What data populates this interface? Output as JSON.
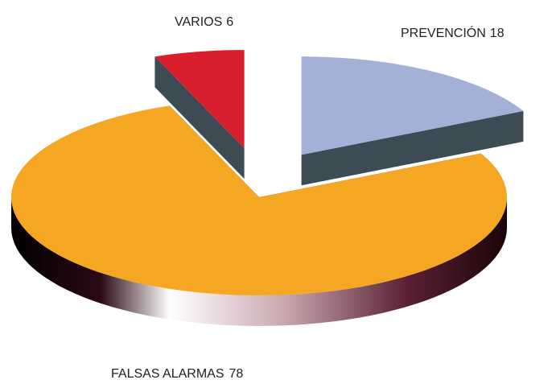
{
  "chart_data": {
    "type": "pie",
    "categories": [
      "VARIOS",
      "PREVENCIÓN",
      "FALSAS ALARMAS"
    ],
    "values": [
      6,
      18,
      78
    ],
    "colors": [
      "#d91f2e",
      "#a3b1d8",
      "#f5a623"
    ]
  }
}
